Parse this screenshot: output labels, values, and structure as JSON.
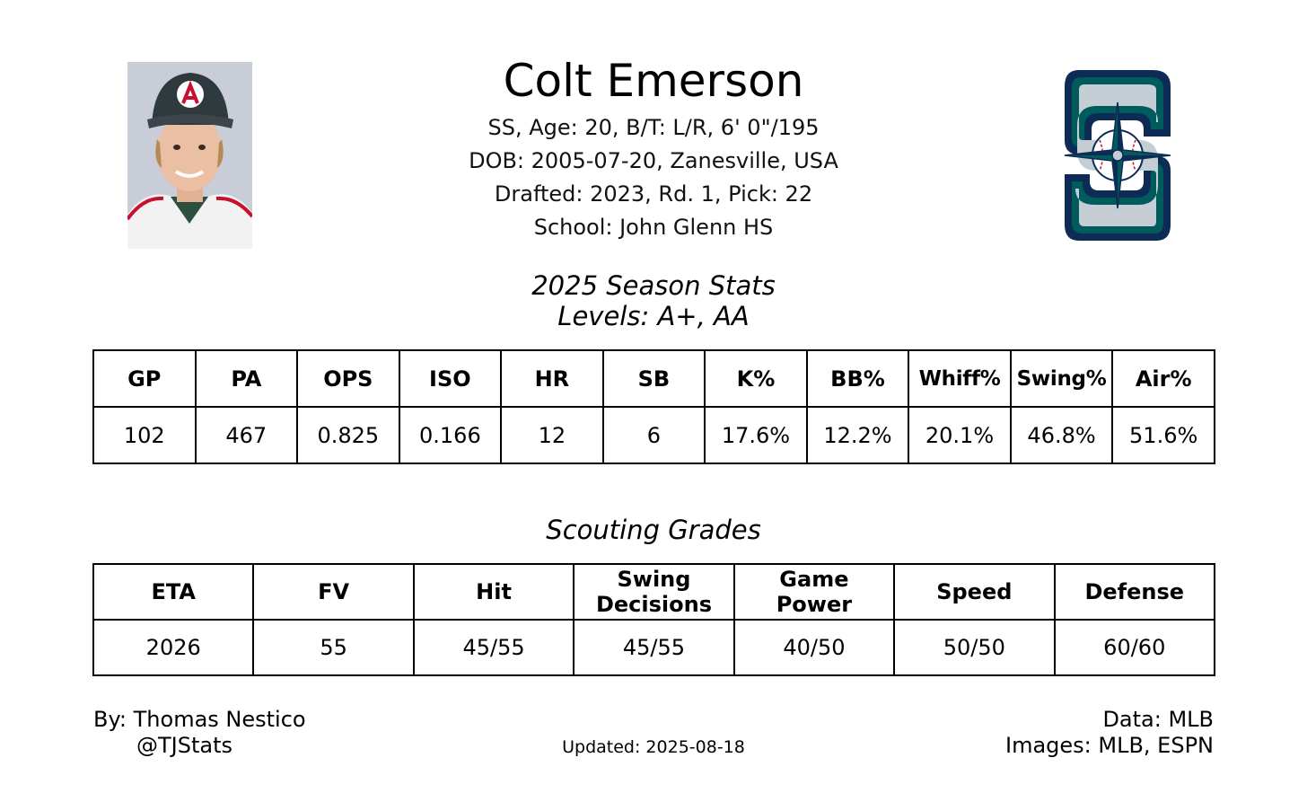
{
  "player": {
    "name": "Colt Emerson",
    "bio_line1": "SS, Age: 20, B/T: L/R, 6' 0\"/195",
    "bio_line2": "DOB: 2005-07-20, Zanesville, USA",
    "bio_line3": "Drafted: 2023, Rd. 1, Pick: 22",
    "bio_line4": "School: John Glenn HS",
    "photo_icon": "player-headshot",
    "team_logo_icon": "mariners-s-compass-logo",
    "colors": {
      "logo_navy": "#0c2c56",
      "logo_teal": "#005c5c",
      "logo_silver": "#c4ced4"
    }
  },
  "season_stats": {
    "title": "2025 Season Stats",
    "subtitle": "Levels: A+, AA",
    "headers": [
      "GP",
      "PA",
      "OPS",
      "ISO",
      "HR",
      "SB",
      "K%",
      "BB%",
      "Whiff%",
      "Swing%",
      "Air%"
    ],
    "values": [
      "102",
      "467",
      "0.825",
      "0.166",
      "12",
      "6",
      "17.6%",
      "12.2%",
      "20.1%",
      "46.8%",
      "51.6%"
    ]
  },
  "scouting": {
    "title": "Scouting Grades",
    "headers": [
      [
        "ETA"
      ],
      [
        "FV"
      ],
      [
        "Hit"
      ],
      [
        "Swing",
        "Decisions"
      ],
      [
        "Game",
        "Power"
      ],
      [
        "Speed"
      ],
      [
        "Defense"
      ]
    ],
    "values": [
      "2026",
      "55",
      "45/55",
      "45/55",
      "40/50",
      "50/50",
      "60/60"
    ]
  },
  "footer": {
    "by": "By: Thomas Nestico",
    "handle": "@TJStats",
    "updated": "Updated: 2025-08-18",
    "data_source": "Data: MLB",
    "images_source": "Images: MLB, ESPN"
  }
}
